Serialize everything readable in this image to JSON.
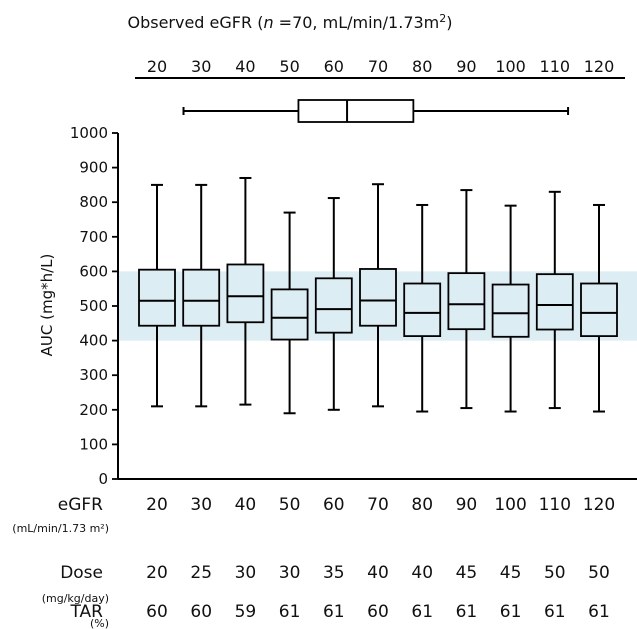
{
  "chart_data": {
    "type": "boxplot",
    "title": "Observed eGFR (",
    "title_italic": "n",
    "title_rest": " =70, mL/min/1.73m",
    "title_sup": "2",
    "title_end": ")",
    "ylabel": "AUC (mg*h/L)",
    "ylim": [
      0,
      1000
    ],
    "yticks": [
      0,
      100,
      200,
      300,
      400,
      500,
      600,
      700,
      800,
      900,
      1000
    ],
    "target_band": [
      400,
      600
    ],
    "band_color": "#ddedf4",
    "top_axis": {
      "ticks": [
        20,
        30,
        40,
        50,
        60,
        70,
        80,
        90,
        100,
        110,
        120
      ],
      "observed_box": {
        "min": 26,
        "q1": 52,
        "median": 63,
        "q3": 78,
        "max": 113
      }
    },
    "categories": [
      "20",
      "30",
      "40",
      "50",
      "60",
      "70",
      "80",
      "90",
      "100",
      "110",
      "120"
    ],
    "boxes": [
      {
        "min": 210,
        "q1": 443,
        "median": 515,
        "q3": 605,
        "max": 850
      },
      {
        "min": 210,
        "q1": 443,
        "median": 515,
        "q3": 605,
        "max": 850
      },
      {
        "min": 215,
        "q1": 453,
        "median": 528,
        "q3": 620,
        "max": 870
      },
      {
        "min": 190,
        "q1": 403,
        "median": 466,
        "q3": 548,
        "max": 770
      },
      {
        "min": 200,
        "q1": 423,
        "median": 491,
        "q3": 580,
        "max": 812
      },
      {
        "min": 210,
        "q1": 443,
        "median": 516,
        "q3": 607,
        "max": 852
      },
      {
        "min": 195,
        "q1": 413,
        "median": 480,
        "q3": 565,
        "max": 792
      },
      {
        "min": 205,
        "q1": 433,
        "median": 505,
        "q3": 595,
        "max": 835
      },
      {
        "min": 195,
        "q1": 411,
        "median": 479,
        "q3": 562,
        "max": 790
      },
      {
        "min": 205,
        "q1": 432,
        "median": 503,
        "q3": 592,
        "max": 830
      },
      {
        "min": 195,
        "q1": 413,
        "median": 480,
        "q3": 565,
        "max": 792
      }
    ],
    "rows": [
      {
        "label": "eGFR",
        "unit": "(mL/min/1.73 m²)",
        "values": [
          "20",
          "30",
          "40",
          "50",
          "60",
          "70",
          "80",
          "90",
          "100",
          "110",
          "120"
        ]
      },
      {
        "label": "Dose",
        "unit": "(mg/kg/day)",
        "values": [
          "20",
          "25",
          "30",
          "30",
          "35",
          "40",
          "40",
          "45",
          "45",
          "50",
          "50"
        ]
      },
      {
        "label": "TAR",
        "unit": "(%)",
        "values": [
          "60",
          "60",
          "59",
          "61",
          "61",
          "60",
          "61",
          "61",
          "61",
          "61",
          "61"
        ]
      }
    ]
  }
}
